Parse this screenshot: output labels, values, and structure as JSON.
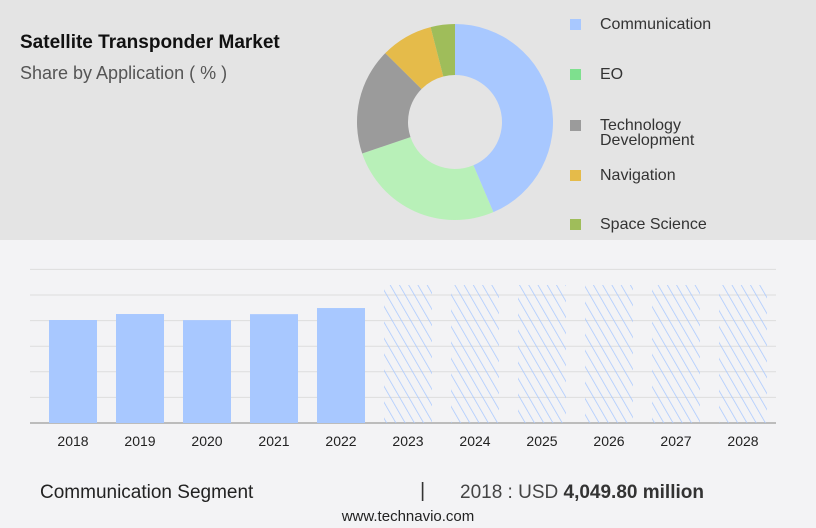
{
  "title": "Satellite Transponder Market",
  "subtitle": "Share by Application ( % )",
  "chart_data": [
    {
      "type": "pie",
      "donut": true,
      "slices": [
        {
          "label": "Communication",
          "value": 43.6,
          "color": "#a8c8ff"
        },
        {
          "label": "EO",
          "value": 26.2,
          "color": "#b8f0b8",
          "legend_color": "#7ee08e"
        },
        {
          "label": "Technology Development",
          "value": 17.6,
          "color": "#9b9b9b"
        },
        {
          "label": "Navigation",
          "value": 8.6,
          "color": "#e5bb4a"
        },
        {
          "label": "Space Science",
          "value": 4.0,
          "color": "#9fbd5a"
        }
      ]
    },
    {
      "type": "bar",
      "categories": [
        "2018",
        "2019",
        "2020",
        "2021",
        "2022",
        "2023",
        "2024",
        "2025",
        "2026",
        "2027",
        "2028"
      ],
      "values": [
        4049.8,
        4285,
        4045,
        4280,
        4520,
        null,
        null,
        null,
        null,
        null,
        null
      ],
      "forecast": [
        false,
        false,
        false,
        false,
        false,
        true,
        true,
        true,
        true,
        true,
        true
      ],
      "color": "#a8c8ff",
      "grid": true,
      "ylim": [
        0,
        6000
      ]
    }
  ],
  "footer": {
    "segment": "Communication Segment",
    "separator": "|",
    "year_label": "2018 : USD ",
    "value": "4,049.80 million",
    "site": "www.technavio.com"
  }
}
